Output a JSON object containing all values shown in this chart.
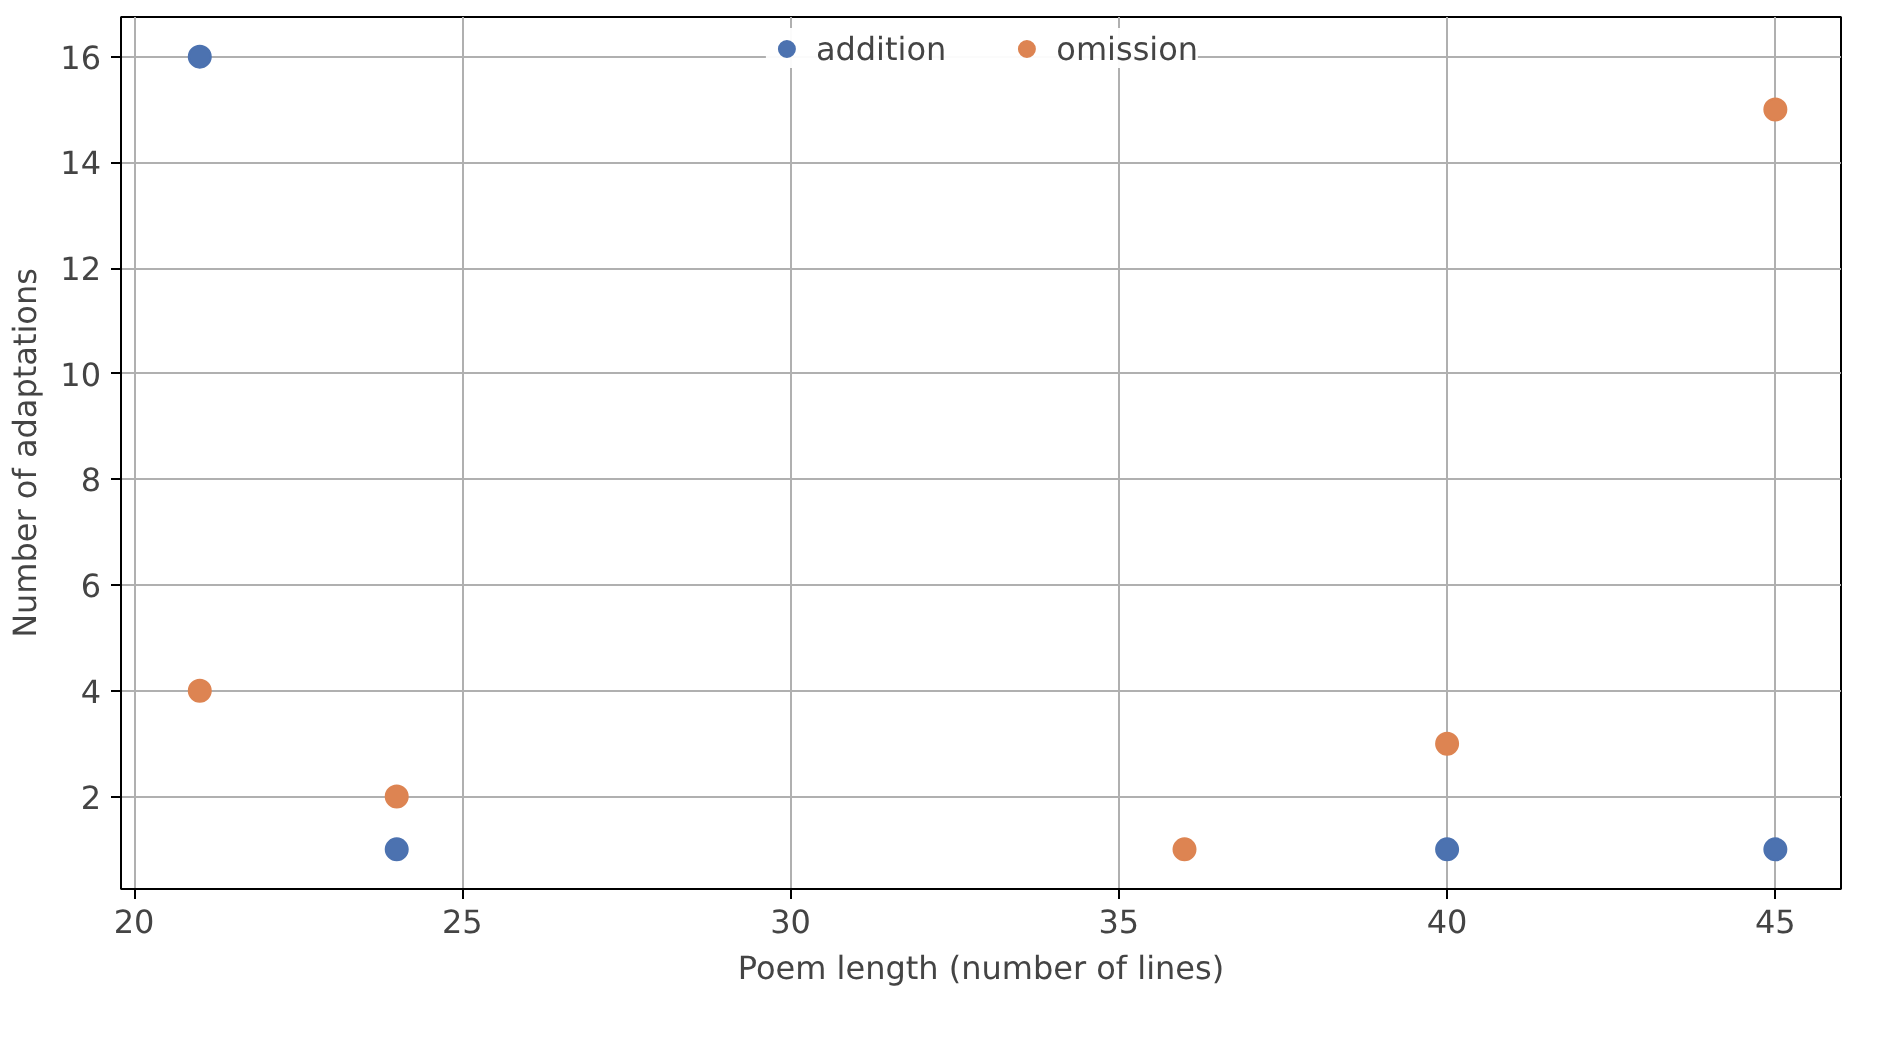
{
  "chart_data": {
    "type": "scatter",
    "xlabel": "Poem length (number of lines)",
    "ylabel": "Number of adaptations",
    "series": [
      {
        "name": "addition",
        "color": "#4c72b0",
        "x": [
          21,
          24,
          40,
          45
        ],
        "values": [
          16,
          1,
          1,
          1
        ]
      },
      {
        "name": "omission",
        "color": "#dd8452",
        "x": [
          21,
          24,
          36,
          40,
          45
        ],
        "values": [
          4,
          2,
          1,
          3,
          15
        ]
      }
    ],
    "xlim": [
      19.8,
      46
    ],
    "ylim": [
      0.25,
      16.75
    ],
    "xticks": [
      20,
      25,
      30,
      35,
      40,
      45
    ],
    "yticks": [
      2,
      4,
      6,
      8,
      10,
      12,
      14,
      16
    ],
    "grid": true,
    "legend": "top"
  }
}
